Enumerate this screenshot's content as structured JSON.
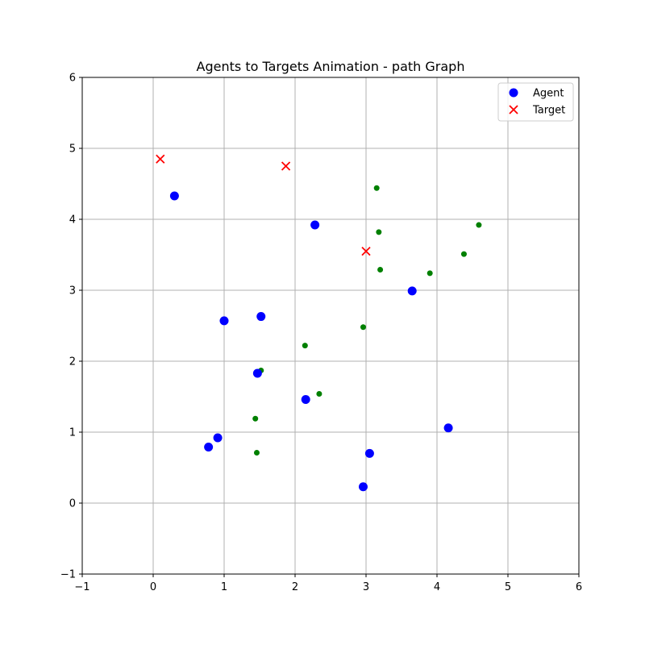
{
  "chart_data": {
    "type": "scatter",
    "title": "Agents to Targets Animation - path Graph",
    "xlabel": "",
    "ylabel": "",
    "xlim": [
      -1,
      6
    ],
    "ylim": [
      -1,
      6
    ],
    "xticks": [
      "−1",
      "0",
      "1",
      "2",
      "3",
      "4",
      "5",
      "6"
    ],
    "yticks": [
      "−1",
      "0",
      "1",
      "2",
      "3",
      "4",
      "5",
      "6"
    ],
    "grid": true,
    "legend_position": "top-right",
    "colors": {
      "agent": "#0000ff",
      "target": "#ff0000",
      "path": "#008000",
      "grid": "#b0b0b0"
    },
    "series": [
      {
        "name": "Agent",
        "marker": "circle",
        "points": [
          [
            0.3,
            4.33
          ],
          [
            2.28,
            3.92
          ],
          [
            3.65,
            2.99
          ],
          [
            1.0,
            2.57
          ],
          [
            1.52,
            2.63
          ],
          [
            1.47,
            1.83
          ],
          [
            2.15,
            1.46
          ],
          [
            4.16,
            1.06
          ],
          [
            0.91,
            0.92
          ],
          [
            0.78,
            0.79
          ],
          [
            3.05,
            0.7
          ],
          [
            2.96,
            0.23
          ]
        ]
      },
      {
        "name": "Target",
        "marker": "x",
        "points": [
          [
            0.1,
            4.85
          ],
          [
            1.87,
            4.75
          ],
          [
            3.0,
            3.55
          ]
        ]
      },
      {
        "marker": "small-dot",
        "points": [
          [
            3.15,
            4.44
          ],
          [
            3.18,
            3.82
          ],
          [
            3.2,
            3.29
          ],
          [
            4.59,
            3.92
          ],
          [
            4.38,
            3.51
          ],
          [
            3.9,
            3.24
          ],
          [
            2.96,
            2.48
          ],
          [
            2.14,
            2.22
          ],
          [
            1.52,
            1.87
          ],
          [
            2.34,
            1.54
          ],
          [
            1.44,
            1.19
          ],
          [
            1.46,
            0.71
          ]
        ]
      }
    ]
  }
}
